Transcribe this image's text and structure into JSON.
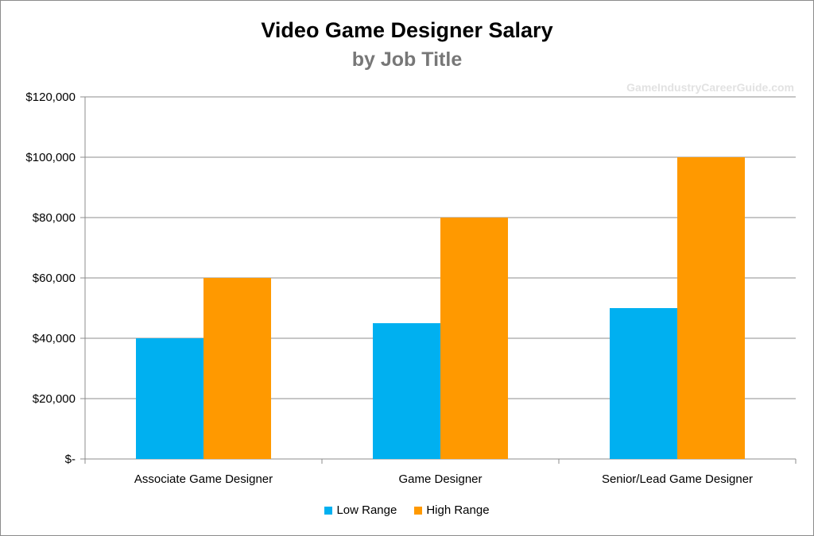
{
  "chart_data": {
    "type": "bar",
    "title": "Video Game Designer Salary",
    "subtitle": "by Job Title",
    "watermark": "GameIndustryCareerGuide.com",
    "categories": [
      "Associate Game Designer",
      "Game Designer",
      "Senior/Lead Game Designer"
    ],
    "series": [
      {
        "name": "Low Range",
        "color": "#00b0f0",
        "values": [
          40000,
          45000,
          50000
        ]
      },
      {
        "name": "High Range",
        "color": "#ff9900",
        "values": [
          60000,
          80000,
          100000
        ]
      }
    ],
    "ylim": [
      0,
      120000
    ],
    "y_ticks": [
      0,
      20000,
      40000,
      60000,
      80000,
      100000,
      120000
    ],
    "y_tick_labels": [
      "$-",
      "$20,000",
      "$40,000",
      "$60,000",
      "$80,000",
      "$100,000",
      "$120,000"
    ],
    "xlabel": "",
    "ylabel": "",
    "grid": true,
    "legend_position": "bottom"
  }
}
